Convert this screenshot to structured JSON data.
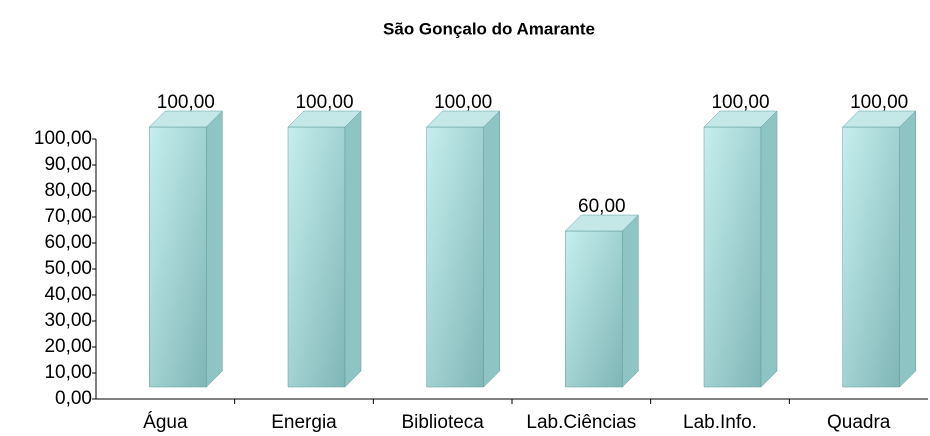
{
  "chart_data": {
    "type": "bar",
    "title": "São Gonçalo do Amarante",
    "categories": [
      "Água",
      "Energia",
      "Biblioteca",
      "Lab.Ciências",
      "Lab.Info.",
      "Quadra"
    ],
    "values": [
      100,
      100,
      100,
      60,
      100,
      100
    ],
    "value_labels": [
      "100,00",
      "100,00",
      "100,00",
      "60,00",
      "100,00",
      "100,00"
    ],
    "color": "#a9dada",
    "ylim": [
      0,
      100
    ],
    "yticks": [
      {
        "value": 0,
        "label": "0,00"
      },
      {
        "value": 10,
        "label": "10,00"
      },
      {
        "value": 20,
        "label": "20,00"
      },
      {
        "value": 30,
        "label": "30,00"
      },
      {
        "value": 40,
        "label": "40,00"
      },
      {
        "value": 50,
        "label": "50,00"
      },
      {
        "value": 60,
        "label": "60,00"
      },
      {
        "value": 70,
        "label": "70,00"
      },
      {
        "value": 80,
        "label": "80,00"
      },
      {
        "value": 90,
        "label": "90,00"
      },
      {
        "value": 100,
        "label": "100,00"
      }
    ]
  }
}
